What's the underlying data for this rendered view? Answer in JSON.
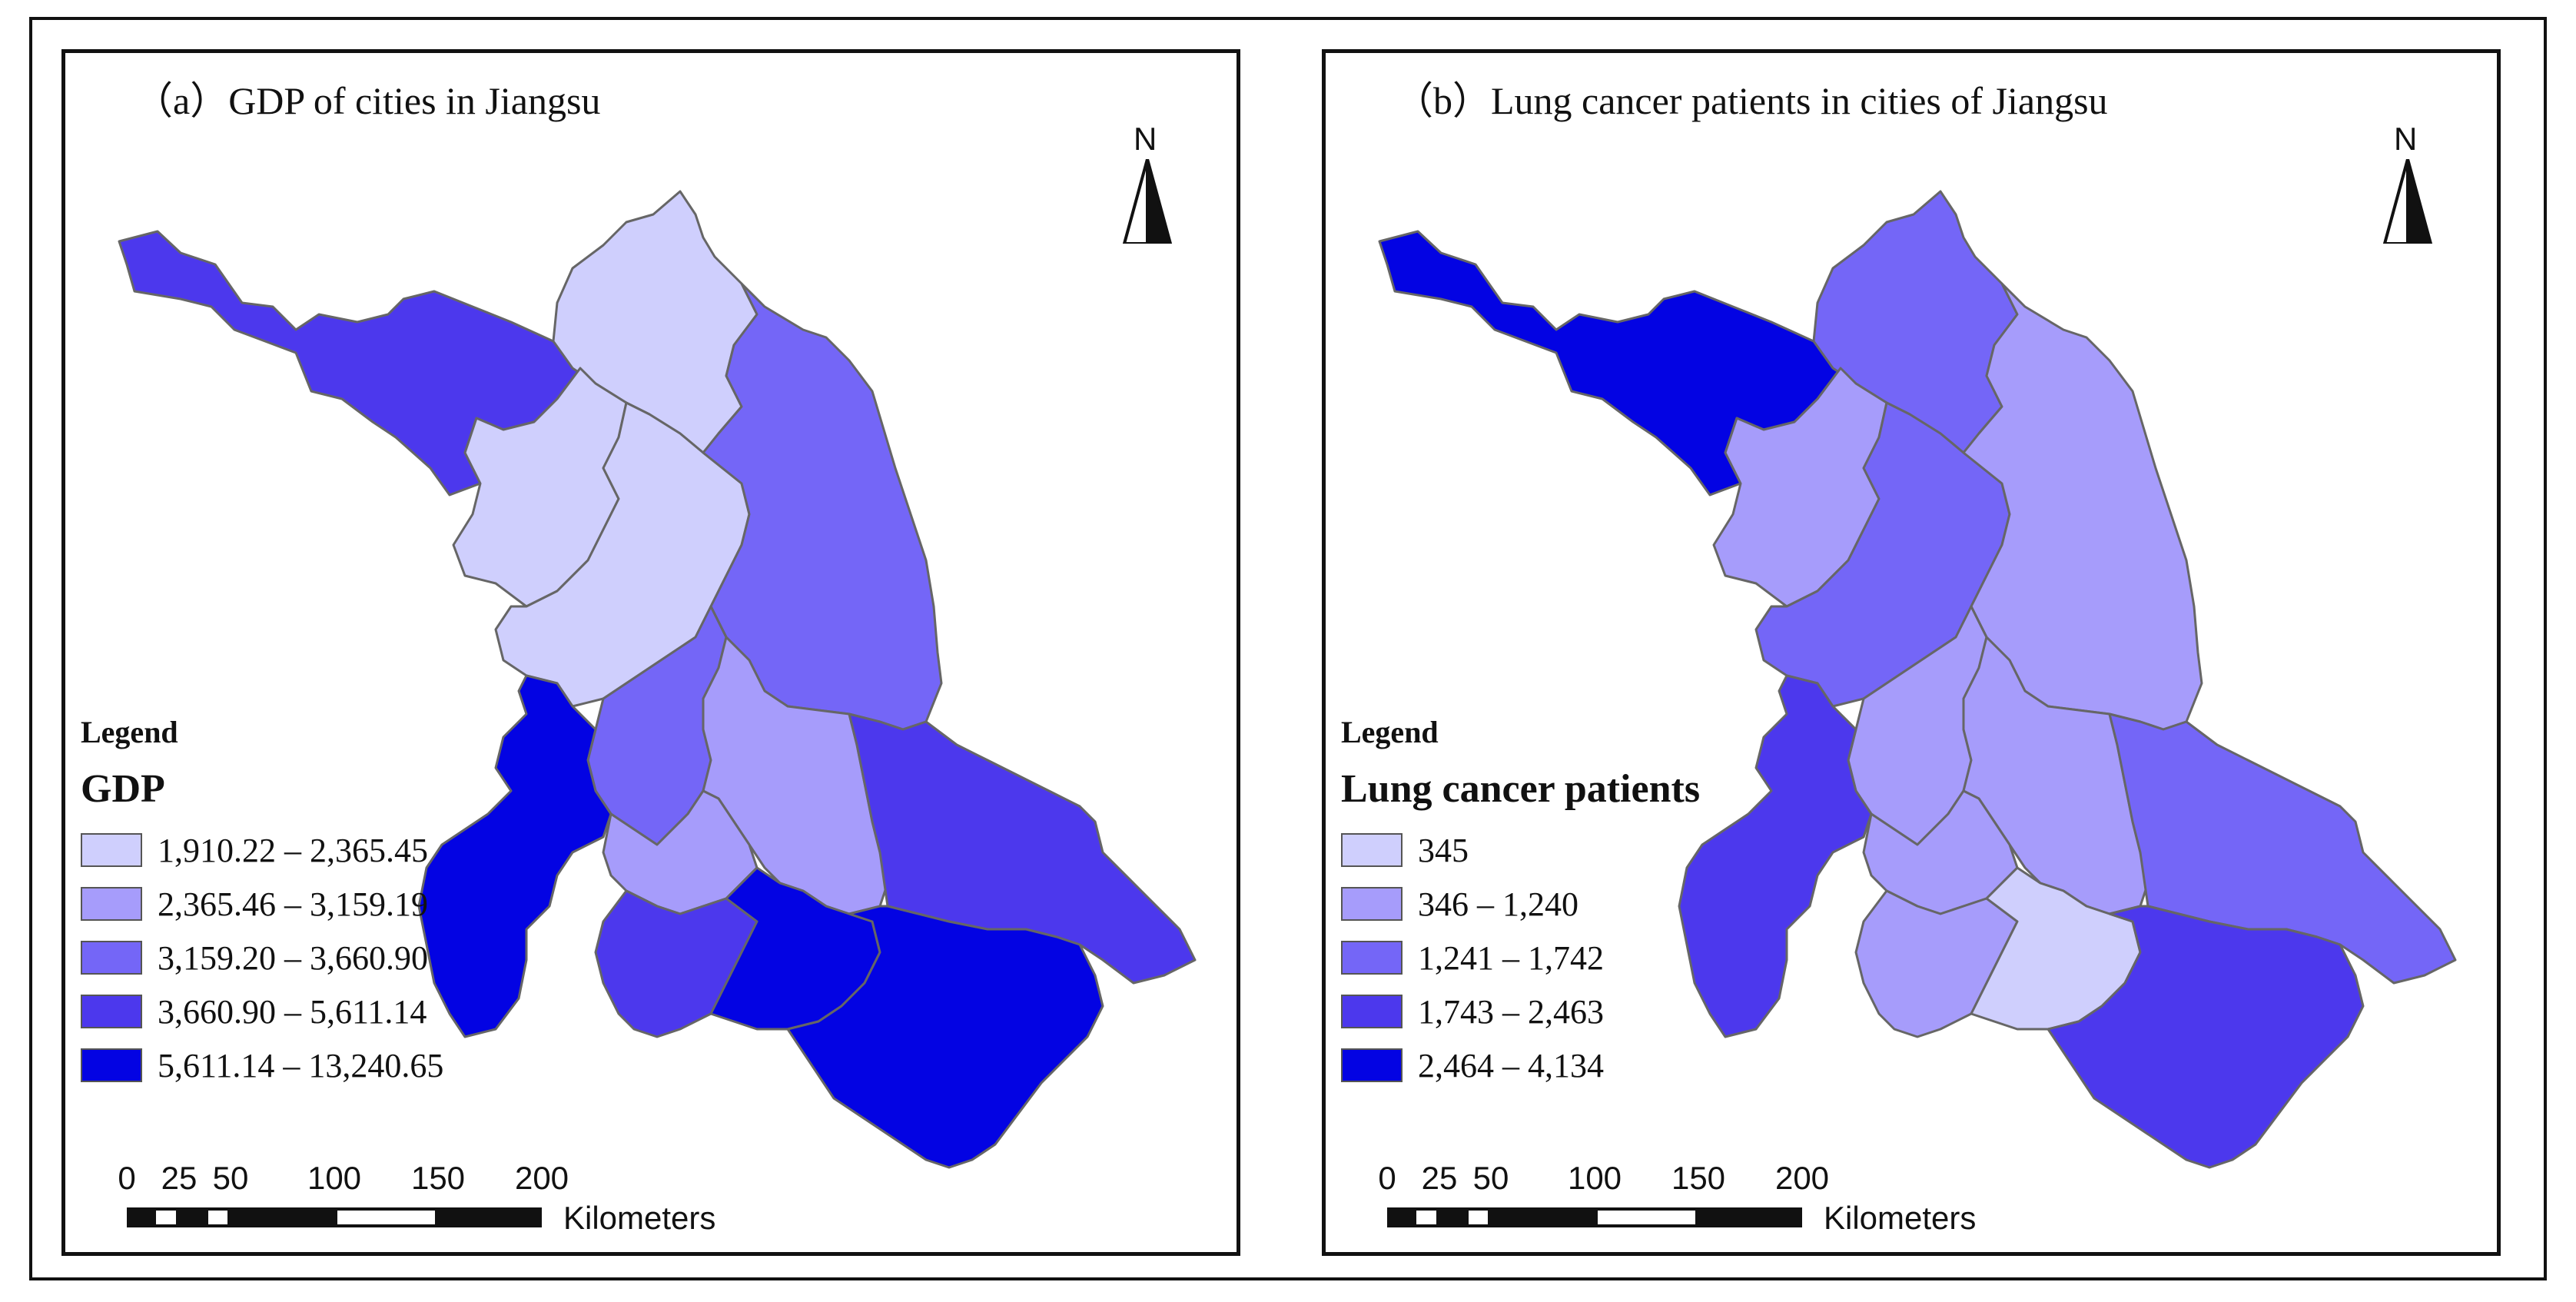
{
  "panels": [
    {
      "title": "（a）GDP of cities in Jiangsu",
      "north_label": "N",
      "legend_heading": "Legend",
      "legend_title": "GDP",
      "legend_items": [
        {
          "label": "1,910.22 – 2,365.45",
          "color": "#cfcffd"
        },
        {
          "label": "2,365.46 – 3,159.19",
          "color": "#a69cfb"
        },
        {
          "label": "3,159.20 – 3,660.90",
          "color": "#7466f7"
        },
        {
          "label": "3,660.90 – 5,611.14",
          "color": "#4c38ed"
        },
        {
          "label": "5,611.14 – 13,240.65",
          "color": "#0303e3"
        }
      ],
      "region_classes": [
        4,
        1,
        1,
        1,
        3,
        3,
        2,
        4,
        5,
        2,
        4,
        5,
        5
      ]
    },
    {
      "title": "（b）Lung cancer patients in cities of Jiangsu",
      "north_label": "N",
      "legend_heading": "Legend",
      "legend_title": "Lung cancer patients",
      "legend_items": [
        {
          "label": "345",
          "color": "#cfcffd"
        },
        {
          "label": "346 – 1,240",
          "color": "#a69cfb"
        },
        {
          "label": "1,241 – 1,742",
          "color": "#7466f7"
        },
        {
          "label": "1,743 – 2,463",
          "color": "#4c38ed"
        },
        {
          "label": "2,464 – 4,134",
          "color": "#0303e3"
        }
      ],
      "region_classes": [
        5,
        3,
        2,
        3,
        2,
        2,
        2,
        3,
        4,
        2,
        2,
        1,
        4
      ]
    }
  ],
  "scale_bar": {
    "unit": "Kilometers",
    "ticks": [
      "0",
      "25",
      "50",
      "100",
      "150",
      "200"
    ]
  }
}
